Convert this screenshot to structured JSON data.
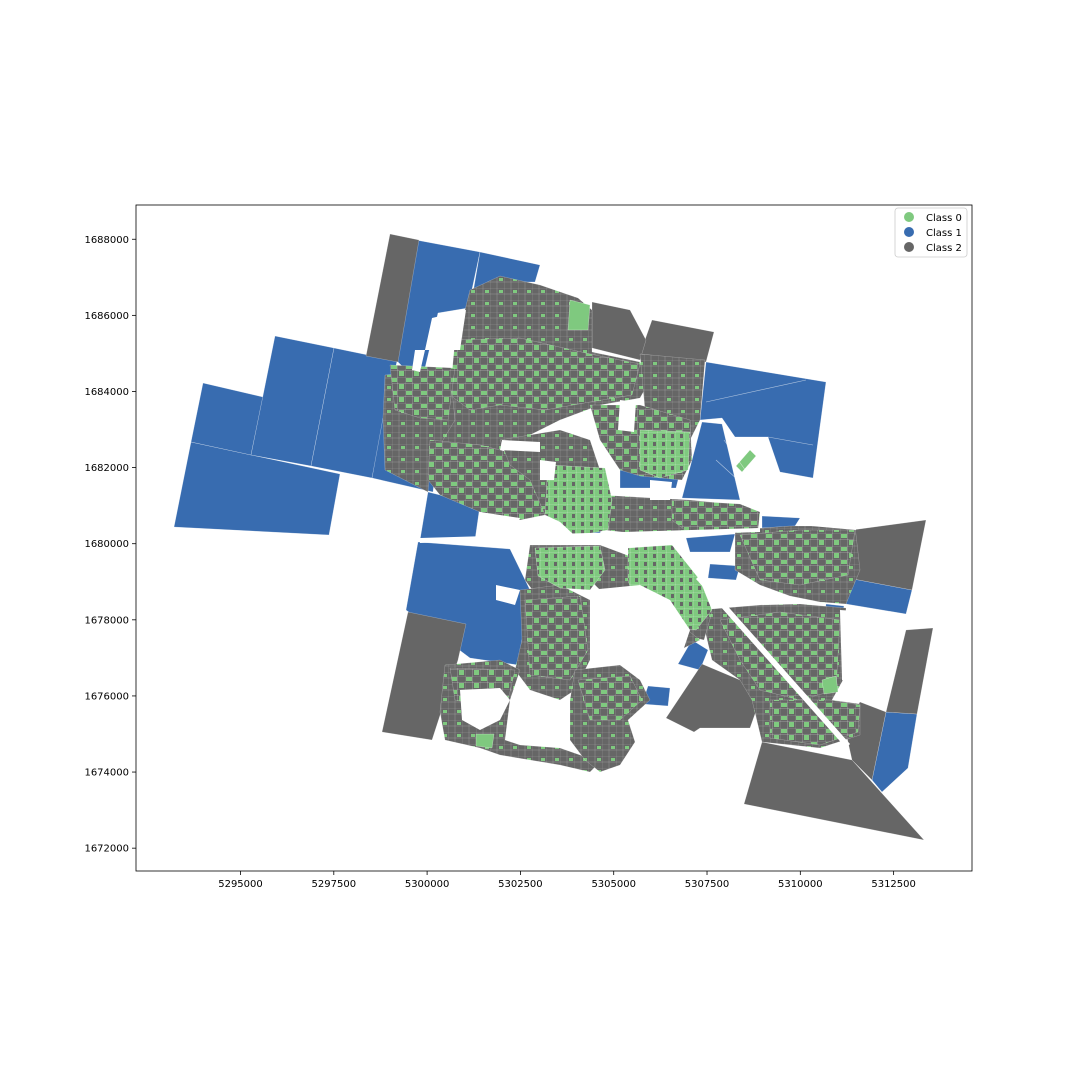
{
  "chart_data": {
    "type": "choropleth-map",
    "title": "",
    "xlabel": "",
    "ylabel": "",
    "xlim": [
      5292200,
      5314600
    ],
    "ylim": [
      1671400,
      1688900
    ],
    "x_ticks": [
      5295000,
      5297500,
      5300000,
      5302500,
      5305000,
      5307500,
      5310000,
      5312500
    ],
    "y_ticks": [
      1672000,
      1674000,
      1676000,
      1678000,
      1680000,
      1682000,
      1684000,
      1686000,
      1688000
    ],
    "x_tick_labels": [
      "5295000",
      "5297500",
      "5300000",
      "5302500",
      "5305000",
      "5307500",
      "5310000",
      "5312500"
    ],
    "y_tick_labels": [
      "1672000",
      "1674000",
      "1676000",
      "1678000",
      "1680000",
      "1682000",
      "1684000",
      "1686000",
      "1688000"
    ],
    "legend": {
      "placement": "top-right",
      "entries": [
        {
          "label": "Class 0",
          "color": "#7fc97f"
        },
        {
          "label": "Class 1",
          "color": "#386cb0"
        },
        {
          "label": "Class 2",
          "color": "#666666"
        }
      ]
    },
    "grid": false
  }
}
